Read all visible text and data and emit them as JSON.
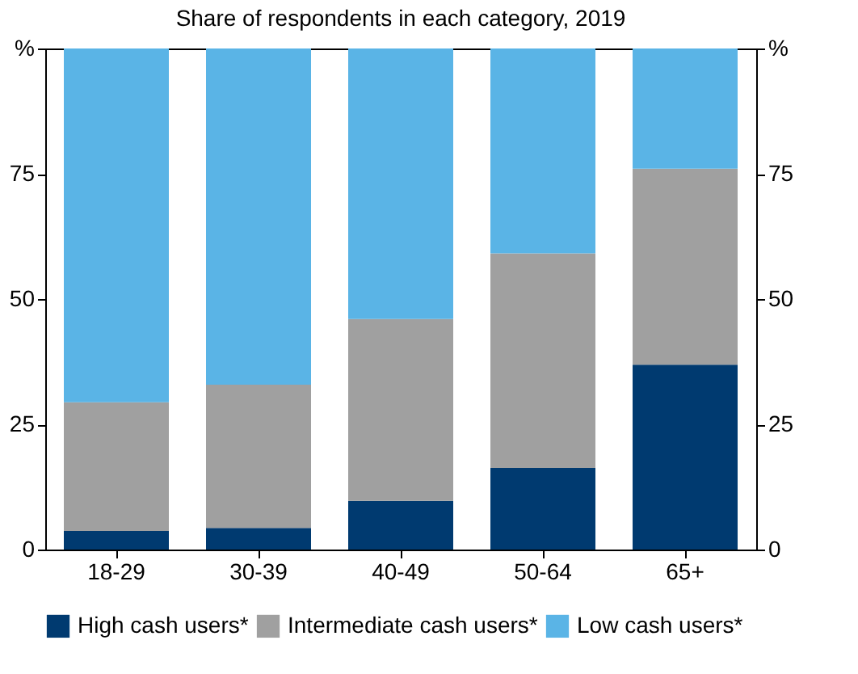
{
  "chart_data": {
    "type": "bar",
    "title": "Share of respondents in each category, 2019",
    "categories": [
      "18-29",
      "30-39",
      "40-49",
      "50-64",
      "65+"
    ],
    "stacked": true,
    "series": [
      {
        "name": "High cash users*",
        "color": "#003a70",
        "values": [
          3.7,
          4.3,
          9.7,
          16.3,
          36.9
        ]
      },
      {
        "name": "Intermediate cash users*",
        "color": "#a0a0a0",
        "values": [
          25.7,
          28.6,
          36.3,
          42.8,
          39.1
        ]
      },
      {
        "name": "Low cash users*",
        "color": "#5ab4e6",
        "values": [
          70.6,
          67.1,
          54.0,
          40.9,
          24.0
        ]
      }
    ],
    "ylim": [
      0,
      100
    ],
    "yticks": [
      0,
      25,
      50,
      75,
      {
        "value": 100,
        "label": "%"
      }
    ],
    "y2lim": [
      0,
      100
    ],
    "y2ticks": [
      0,
      25,
      50,
      75,
      {
        "value": 100,
        "label": "%"
      }
    ],
    "grid": false,
    "legend": "bottom"
  }
}
